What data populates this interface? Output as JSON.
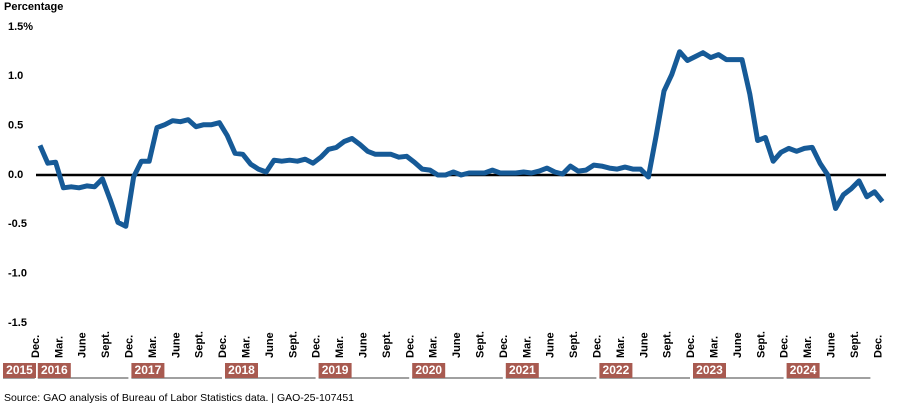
{
  "chart_data": {
    "type": "line",
    "title": "Percentage",
    "source": "Source: GAO analysis of Bureau of Labor Statistics data.  |  GAO-25-107451",
    "categories": [
      "Dec.",
      null,
      null,
      "Mar.",
      null,
      null,
      "June",
      null,
      null,
      "Sept.",
      null,
      null,
      "Dec.",
      null,
      null,
      "Mar.",
      null,
      null,
      "June",
      null,
      null,
      "Sept.",
      null,
      null,
      "Dec.",
      null,
      null,
      "Mar.",
      null,
      null,
      "June",
      null,
      null,
      "Sept.",
      null,
      null,
      "Dec.",
      null,
      null,
      "Mar.",
      null,
      null,
      "June",
      null,
      null,
      "Sept.",
      null,
      null,
      "Dec.",
      null,
      null,
      "Mar.",
      null,
      null,
      "June",
      null,
      null,
      "Sept.",
      null,
      null,
      "Dec.",
      null,
      null,
      "Mar.",
      null,
      null,
      "June",
      null,
      null,
      "Sept.",
      null,
      null,
      "Dec.",
      null,
      null,
      "Mar.",
      null,
      null,
      "June",
      null,
      null,
      "Sept.",
      null,
      null,
      "Dec.",
      null,
      null,
      "Mar.",
      null,
      null,
      "June",
      null,
      null,
      "Sept.",
      null,
      null,
      "Dec.",
      null,
      null,
      "Mar.",
      null,
      null,
      "June",
      null,
      null,
      "Sept.",
      null,
      null,
      "Dec."
    ],
    "year_labels": [
      "2015",
      "2016",
      "2017",
      "2018",
      "2019",
      "2020",
      "2021",
      "2022",
      "2023",
      "2024"
    ],
    "year_color": "#a85a50",
    "series": [
      {
        "color": "#165a97",
        "values": [
          0.3,
          0.12,
          0.13,
          -0.13,
          -0.12,
          -0.13,
          -0.11,
          -0.12,
          -0.04,
          -0.25,
          -0.48,
          -0.52,
          -0.02,
          0.14,
          0.14,
          0.48,
          0.51,
          0.55,
          0.54,
          0.56,
          0.49,
          0.51,
          0.51,
          0.53,
          0.4,
          0.22,
          0.21,
          0.11,
          0.06,
          0.03,
          0.15,
          0.14,
          0.15,
          0.14,
          0.16,
          0.12,
          0.18,
          0.26,
          0.28,
          0.34,
          0.37,
          0.31,
          0.24,
          0.21,
          0.21,
          0.21,
          0.18,
          0.19,
          0.13,
          0.06,
          0.05,
          0.0,
          0.0,
          0.03,
          0.0,
          0.02,
          0.02,
          0.02,
          0.05,
          0.02,
          0.02,
          0.02,
          0.03,
          0.02,
          0.04,
          0.07,
          0.03,
          0.01,
          0.09,
          0.04,
          0.05,
          0.1,
          0.09,
          0.07,
          0.06,
          0.08,
          0.06,
          0.06,
          -0.02,
          0.4,
          0.85,
          1.02,
          1.25,
          1.16,
          1.2,
          1.24,
          1.19,
          1.22,
          1.17,
          1.17,
          1.17,
          0.82,
          0.35,
          0.38,
          0.14,
          0.23,
          0.27,
          0.24,
          0.27,
          0.28,
          0.12,
          0.0,
          -0.34,
          -0.2,
          -0.14,
          -0.06,
          -0.22,
          -0.17,
          -0.27
        ]
      }
    ],
    "ylim": [
      -1.5,
      1.5
    ],
    "yticks": [
      {
        "value": 1.5,
        "label": "1.5%"
      },
      {
        "value": 1.0,
        "label": "1.0"
      },
      0.5,
      {
        "value": 0.0,
        "label": "0.0"
      },
      -0.5,
      {
        "value": -1.0,
        "label": "-1.0"
      },
      -1.5
    ],
    "grid": false
  }
}
